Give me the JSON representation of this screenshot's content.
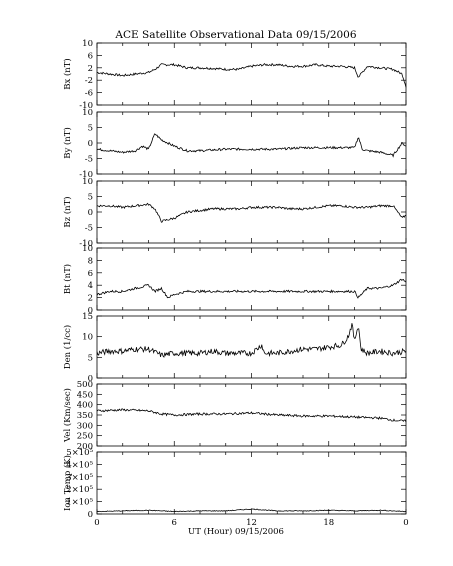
{
  "figure": {
    "title": "ACE Satellite Observational Data   09/15/2006",
    "xlabel": "UT (Hour)   09/15/2006",
    "xticks": [
      "0",
      "6",
      "12",
      "18",
      "0"
    ],
    "line_color": "#000000"
  },
  "chart_data": [
    {
      "type": "line",
      "ylabel": "Bx (nT)",
      "ylim": [
        -10,
        10
      ],
      "yticks": [
        "10",
        "6",
        "2",
        "-2",
        "-6",
        "-10"
      ],
      "ytick_values": [
        10,
        6,
        2,
        -2,
        -6,
        -10
      ],
      "xlim": [
        0,
        24
      ],
      "x": [
        0,
        1,
        2,
        3,
        4,
        4.5,
        5,
        6,
        7,
        8,
        9,
        10,
        11,
        12,
        13,
        14,
        15,
        16,
        17,
        18,
        19,
        20,
        20.3,
        21,
        22,
        23,
        23.7,
        24
      ],
      "series": [
        {
          "values": [
            0.5,
            0,
            -0.5,
            0,
            0.5,
            1.5,
            3,
            3,
            2,
            2,
            1.8,
            1.5,
            1.5,
            2.5,
            3,
            3,
            2.5,
            2.5,
            3,
            2.5,
            2.5,
            2,
            -1,
            2.5,
            2,
            1.5,
            0,
            -4
          ]
        }
      ]
    },
    {
      "type": "line",
      "ylabel": "By (nT)",
      "ylim": [
        -10,
        10
      ],
      "yticks": [
        "10",
        "5",
        "0",
        "-5",
        "-10"
      ],
      "ytick_values": [
        10,
        5,
        0,
        -5,
        -10
      ],
      "xlim": [
        0,
        24
      ],
      "x": [
        0,
        1,
        2,
        3,
        3.5,
        4,
        4.5,
        5,
        6,
        7,
        8,
        10,
        12,
        14,
        16,
        18,
        19,
        20,
        20.3,
        20.6,
        21,
        22,
        23,
        23.7,
        24
      ],
      "series": [
        {
          "values": [
            -2,
            -2.5,
            -3,
            -2.5,
            -1,
            -2,
            3,
            1,
            -1,
            -2.5,
            -2.5,
            -2,
            -2,
            -2,
            -1.5,
            -1.5,
            -1.5,
            -1.5,
            2,
            -2,
            -2.5,
            -3,
            -4,
            0,
            -1
          ]
        }
      ]
    },
    {
      "type": "line",
      "ylabel": "Bz (nT)",
      "ylim": [
        -10,
        10
      ],
      "yticks": [
        "10",
        "5",
        "0",
        "-5",
        "-10"
      ],
      "ytick_values": [
        10,
        5,
        0,
        -5,
        -10
      ],
      "xlim": [
        0,
        24
      ],
      "x": [
        0,
        1,
        2,
        3,
        4,
        4.5,
        5,
        6,
        7,
        8,
        9,
        10,
        11,
        12,
        13,
        14,
        15,
        16,
        17,
        18,
        19,
        20,
        21,
        22,
        23,
        23.7,
        24
      ],
      "series": [
        {
          "values": [
            2,
            2,
            1.5,
            2,
            2.5,
            1,
            -3,
            -2,
            0,
            0.5,
            1,
            1,
            1,
            1.5,
            1.5,
            1.5,
            1,
            1,
            1.5,
            2,
            2,
            1.5,
            1.5,
            2,
            2,
            -2,
            -1
          ]
        }
      ]
    },
    {
      "type": "line",
      "ylabel": "Bt (nT)",
      "ylim": [
        0,
        10
      ],
      "yticks": [
        "10",
        "8",
        "6",
        "4",
        "2",
        "0"
      ],
      "ytick_values": [
        10,
        8,
        6,
        4,
        2,
        0
      ],
      "xlim": [
        0,
        24
      ],
      "x": [
        0,
        1,
        2,
        3,
        4,
        4.5,
        5,
        5.5,
        6,
        7,
        8,
        9,
        10,
        11,
        12,
        13,
        14,
        15,
        16,
        17,
        18,
        19,
        20,
        20.3,
        21,
        22,
        23,
        23.7,
        24
      ],
      "series": [
        {
          "values": [
            2.5,
            3,
            3,
            3.5,
            4,
            3,
            3.5,
            2,
            2.5,
            3,
            3,
            3,
            3,
            3,
            3,
            3,
            3,
            3,
            3,
            3,
            3,
            3,
            3,
            2,
            3.5,
            3.5,
            4,
            5,
            4.5
          ]
        }
      ]
    },
    {
      "type": "line",
      "ylabel": "Den (1/cc)",
      "ylim": [
        0,
        15
      ],
      "yticks": [
        "15",
        "10",
        "5",
        "0"
      ],
      "ytick_values": [
        15,
        10,
        5,
        0
      ],
      "xlim": [
        0,
        24
      ],
      "x": [
        0,
        1,
        2,
        3,
        4,
        5,
        6,
        7,
        8,
        9,
        10,
        11,
        12,
        12.8,
        13,
        14,
        15,
        16,
        17,
        18,
        19,
        19.5,
        19.8,
        20,
        20.3,
        20.5,
        21,
        22,
        23,
        24
      ],
      "series": [
        {
          "values": [
            6,
            6.5,
            6.5,
            7,
            7,
            5.5,
            6,
            6,
            6,
            6.5,
            6,
            6,
            6,
            8,
            6,
            6,
            6.5,
            7,
            7,
            7.5,
            8,
            10,
            13,
            9,
            13,
            7,
            6,
            6.5,
            6,
            6.5
          ]
        }
      ]
    },
    {
      "type": "line",
      "ylabel": "Vel (Km/sec)",
      "ylim": [
        200,
        500
      ],
      "yticks": [
        "500",
        "450",
        "400",
        "350",
        "300",
        "250",
        "200"
      ],
      "ytick_values": [
        500,
        450,
        400,
        350,
        300,
        250,
        200
      ],
      "xlim": [
        0,
        24
      ],
      "x": [
        0,
        2,
        4,
        5,
        6,
        8,
        10,
        12,
        14,
        16,
        18,
        20,
        22,
        23,
        24
      ],
      "series": [
        {
          "values": [
            370,
            375,
            370,
            355,
            350,
            355,
            355,
            360,
            350,
            345,
            345,
            340,
            335,
            325,
            320
          ]
        }
      ]
    },
    {
      "type": "line",
      "ylabel": "Ion Temp (K)",
      "ylim": [
        0,
        500000
      ],
      "yticks": [
        "5×10⁵",
        "4×10⁵",
        "3×10⁵",
        "2×10⁵",
        "1×10⁵",
        "0"
      ],
      "ytick_values": [
        500000,
        400000,
        300000,
        200000,
        100000,
        0
      ],
      "xlim": [
        0,
        24
      ],
      "x": [
        0,
        2,
        4,
        6,
        8,
        10,
        12,
        14,
        16,
        18,
        20,
        22,
        24
      ],
      "series": [
        {
          "values": [
            20000,
            25000,
            30000,
            20000,
            25000,
            25000,
            40000,
            25000,
            25000,
            30000,
            25000,
            30000,
            20000
          ]
        }
      ]
    }
  ]
}
